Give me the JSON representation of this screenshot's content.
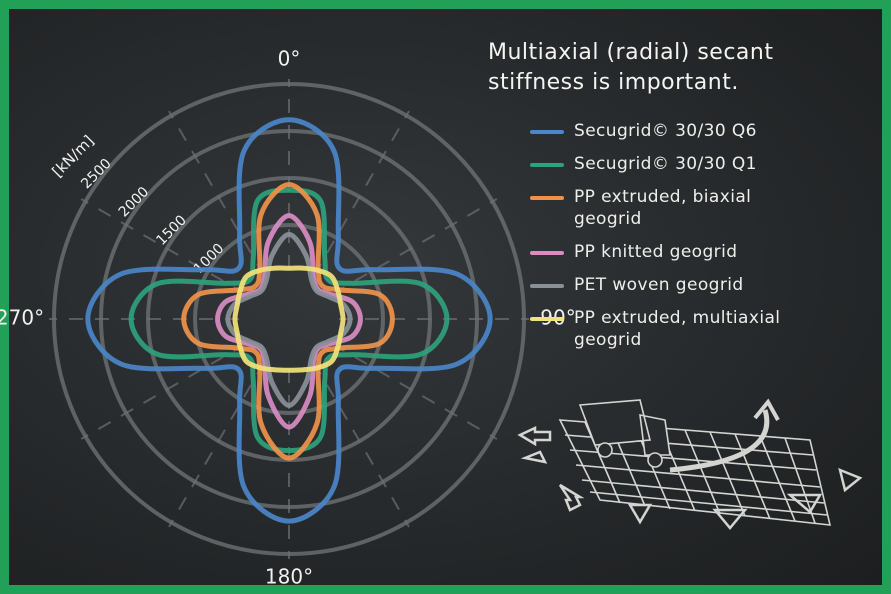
{
  "chart_data": {
    "type": "polar",
    "title": "Multiaxial (radial) secant stiffness is important.",
    "axis_label": "[kN/m]",
    "x": [
      0,
      15,
      30,
      45,
      60,
      75,
      90,
      105,
      120,
      135,
      150,
      165,
      180,
      195,
      210,
      225,
      240,
      255,
      270,
      285,
      300,
      315,
      330,
      345
    ],
    "xticks": [
      {
        "value": 0,
        "label": "0°"
      },
      {
        "value": 90,
        "label": "90°"
      },
      {
        "value": 180,
        "label": "180°"
      },
      {
        "value": 270,
        "label": "270°"
      }
    ],
    "ylim": [
      0,
      2500
    ],
    "yticks": [
      1000,
      1500,
      2000,
      2500
    ],
    "grid": true,
    "series": [
      {
        "name": "Secugrid© 30/30 Q6",
        "color": "#4a86c8",
        "values": [
          2120,
          1850,
          1050,
          760,
          1050,
          1850,
          2140,
          1850,
          1050,
          760,
          1050,
          1850,
          2150,
          1850,
          1050,
          760,
          1050,
          1850,
          2140,
          1850,
          1050,
          760,
          1050,
          1850
        ]
      },
      {
        "name": "Secugrid© 30/30 Q1",
        "color": "#2ea27a",
        "values": [
          1370,
          1300,
          760,
          590,
          760,
          1450,
          1680,
          1450,
          760,
          590,
          760,
          1300,
          1400,
          1300,
          760,
          590,
          760,
          1450,
          1680,
          1450,
          760,
          590,
          760,
          1300
        ]
      },
      {
        "name": "PP extruded, biaxial geogrid",
        "color": "#f0924a",
        "values": [
          1430,
          1150,
          620,
          500,
          620,
          1000,
          1100,
          1000,
          620,
          500,
          620,
          1150,
          1480,
          1150,
          620,
          500,
          620,
          1000,
          1120,
          1000,
          620,
          500,
          620,
          1150
        ]
      },
      {
        "name": "PP knitted geogrid",
        "color": "#d98cc2",
        "values": [
          1100,
          850,
          520,
          440,
          520,
          700,
          760,
          700,
          520,
          440,
          520,
          850,
          1150,
          850,
          520,
          440,
          520,
          700,
          760,
          700,
          520,
          440,
          520,
          850
        ]
      },
      {
        "name": "PET woven geogrid",
        "color": "#8a9098",
        "values": [
          900,
          700,
          480,
          420,
          480,
          600,
          650,
          600,
          480,
          420,
          480,
          700,
          920,
          700,
          480,
          420,
          480,
          600,
          650,
          600,
          480,
          420,
          480,
          700
        ]
      },
      {
        "name": "PP extruded, multiaxial geogrid",
        "color": "#f3e27a",
        "values": [
          540,
          560,
          600,
          640,
          600,
          570,
          575,
          570,
          600,
          640,
          600,
          560,
          545,
          560,
          600,
          640,
          600,
          570,
          575,
          570,
          600,
          640,
          600,
          560
        ]
      }
    ]
  }
}
